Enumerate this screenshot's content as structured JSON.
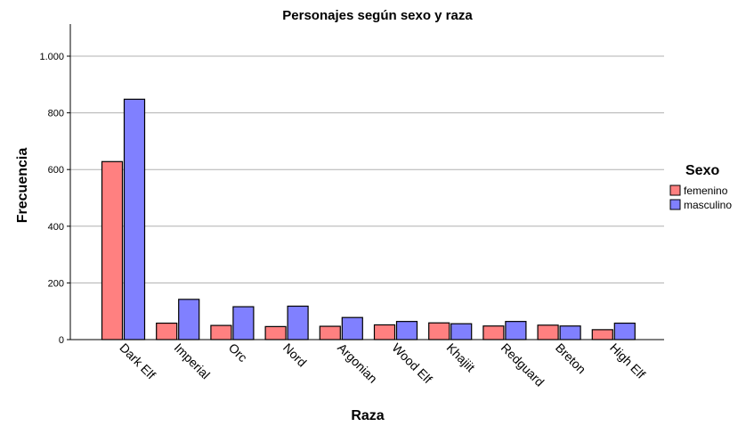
{
  "chart_data": {
    "type": "bar",
    "title": "Personajes según sexo y raza",
    "xlabel": "Raza",
    "ylabel": "Frecuencia",
    "categories": [
      "Dark Elf",
      "Imperial",
      "Orc",
      "Nord",
      "Argonian",
      "Wood Elf",
      "Khajiit",
      "Redguard",
      "Breton",
      "High Elf"
    ],
    "series": [
      {
        "name": "femenino",
        "color": "#ff8080",
        "values": [
          628,
          58,
          50,
          46,
          47,
          52,
          59,
          48,
          51,
          35
        ]
      },
      {
        "name": "masculino",
        "color": "#8080ff",
        "values": [
          848,
          142,
          116,
          118,
          78,
          64,
          56,
          64,
          48,
          58
        ]
      }
    ],
    "ylim": [
      0,
      1000
    ],
    "yticks": [
      0,
      200,
      400,
      600,
      800,
      1000
    ],
    "ytick_labels": [
      "0",
      "200",
      "400",
      "600",
      "800",
      "1.000"
    ],
    "grid": true,
    "legend": {
      "title": "Sexo",
      "position": "right"
    }
  }
}
